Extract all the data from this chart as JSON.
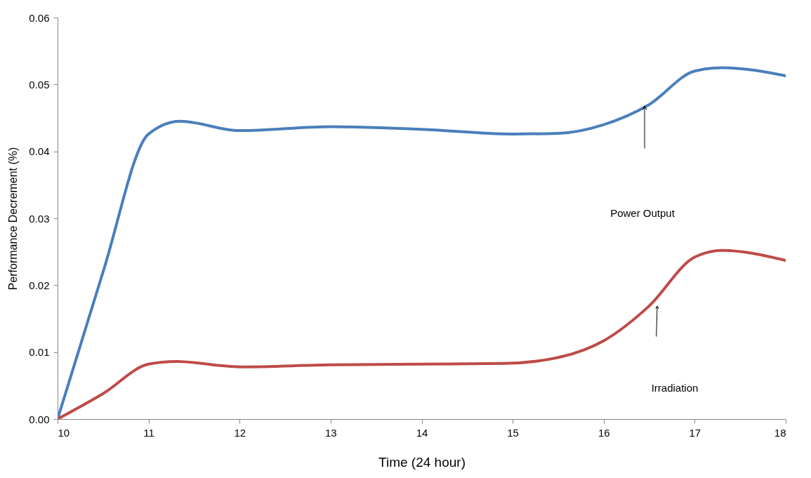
{
  "chart_data": {
    "type": "line",
    "xlabel": "Time (24 hour)",
    "ylabel": "Performance Decrement  (%)",
    "xlim": [
      10,
      18
    ],
    "xticks": [
      10,
      11,
      12,
      13,
      14,
      15,
      16,
      17,
      18
    ],
    "ylim": [
      0,
      0.06
    ],
    "yticks": [
      {
        "value": 0,
        "label": "0.00"
      },
      {
        "value": 0.01,
        "label": "0.01"
      },
      {
        "value": 0.02,
        "label": "0.02"
      },
      {
        "value": 0.03,
        "label": "0.03"
      },
      {
        "value": 0.04,
        "label": "0.04"
      },
      {
        "value": 0.05,
        "label": "0.05"
      },
      {
        "value": 0.06,
        "label": "0.06"
      }
    ],
    "grid": false,
    "line_style": "solid",
    "marker": "none",
    "series": [
      {
        "color": "#4a7ebb",
        "x": [
          10,
          10.5,
          11,
          11.35,
          12,
          13,
          14,
          15,
          15.5,
          16,
          16.5,
          17,
          17.3,
          18
        ],
        "values": [
          0,
          0.022,
          0.0426,
          0.0445,
          0.0431,
          0.0437,
          0.0433,
          0.0426,
          0.0427,
          0.044,
          0.047,
          0.052,
          0.0525,
          0.0513
        ]
      },
      {
        "color": "#be4b48",
        "x": [
          10,
          10.5,
          11,
          11.3,
          12,
          13,
          14,
          14.9,
          15.5,
          16,
          16.5,
          17,
          17.3,
          18
        ],
        "values": [
          0,
          0.0038,
          0.0082,
          0.0086,
          0.0078,
          0.0081,
          0.0082,
          0.0083,
          0.0092,
          0.0117,
          0.0169,
          0.0242,
          0.0252,
          0.0237
        ]
      }
    ],
    "annotations": [
      "Power Output",
      "Irradiation"
    ]
  }
}
